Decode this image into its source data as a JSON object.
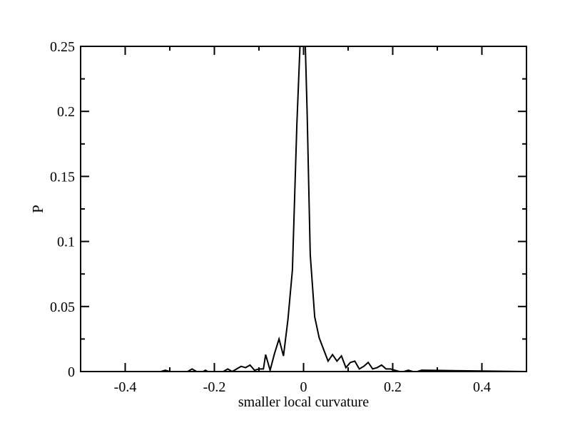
{
  "chart_data": {
    "type": "line",
    "title": "",
    "xlabel": "smaller local curvature",
    "ylabel": "P",
    "xlim": [
      -0.5,
      0.5
    ],
    "ylim": [
      0,
      0.25
    ],
    "grid": false,
    "legend": "none",
    "x_ticks": [
      {
        "value": -0.4,
        "label": "-0.4"
      },
      {
        "value": -0.2,
        "label": "-0.2"
      },
      {
        "value": 0,
        "label": "0"
      },
      {
        "value": 0.2,
        "label": "0.2"
      },
      {
        "value": 0.4,
        "label": "0.4"
      }
    ],
    "y_ticks": [
      {
        "value": 0,
        "label": "0"
      },
      {
        "value": 0.05,
        "label": "0.05"
      },
      {
        "value": 0.1,
        "label": "0.1"
      },
      {
        "value": 0.15,
        "label": "0.15"
      },
      {
        "value": 0.2,
        "label": "0.2"
      },
      {
        "value": 0.25,
        "label": "0.25"
      }
    ],
    "x_minor_ticks": [
      -0.5,
      -0.3,
      -0.1,
      0.1,
      0.3,
      0.5
    ],
    "y_minor_ticks": [
      0.025,
      0.075,
      0.125,
      0.175,
      0.225
    ],
    "series": [
      {
        "color": "#000000",
        "x": [
          -0.5,
          -0.32,
          -0.31,
          -0.3,
          -0.26,
          -0.25,
          -0.24,
          -0.225,
          -0.22,
          -0.215,
          -0.2,
          -0.18,
          -0.17,
          -0.16,
          -0.15,
          -0.14,
          -0.13,
          -0.12,
          -0.11,
          -0.1,
          -0.09,
          -0.085,
          -0.075,
          -0.065,
          -0.055,
          -0.045,
          -0.035,
          -0.025,
          -0.015,
          -0.008,
          -0.004,
          0,
          0.004,
          0.008,
          0.015,
          0.025,
          0.035,
          0.045,
          0.055,
          0.065,
          0.075,
          0.085,
          0.095,
          0.105,
          0.115,
          0.125,
          0.135,
          0.145,
          0.155,
          0.165,
          0.175,
          0.185,
          0.195,
          0.205,
          0.215,
          0.225,
          0.235,
          0.245,
          0.255,
          0.265,
          0.5
        ],
        "y": [
          0,
          0,
          0.001,
          0,
          0,
          0.002,
          0,
          0,
          0.001,
          0,
          0,
          0,
          0.002,
          0,
          0.002,
          0.004,
          0.003,
          0.005,
          0.001,
          0.002,
          0.002,
          0.013,
          0.001,
          0.014,
          0.025,
          0.012,
          0.04,
          0.078,
          0.19,
          0.25,
          0.25,
          0.25,
          0.25,
          0.2,
          0.09,
          0.042,
          0.026,
          0.017,
          0.008,
          0.013,
          0.008,
          0.012,
          0.003,
          0.007,
          0.008,
          0.002,
          0.004,
          0.007,
          0.002,
          0.003,
          0.005,
          0.002,
          0.002,
          0.001,
          0,
          0,
          0.001,
          0,
          0,
          0.001,
          0
        ]
      }
    ]
  }
}
